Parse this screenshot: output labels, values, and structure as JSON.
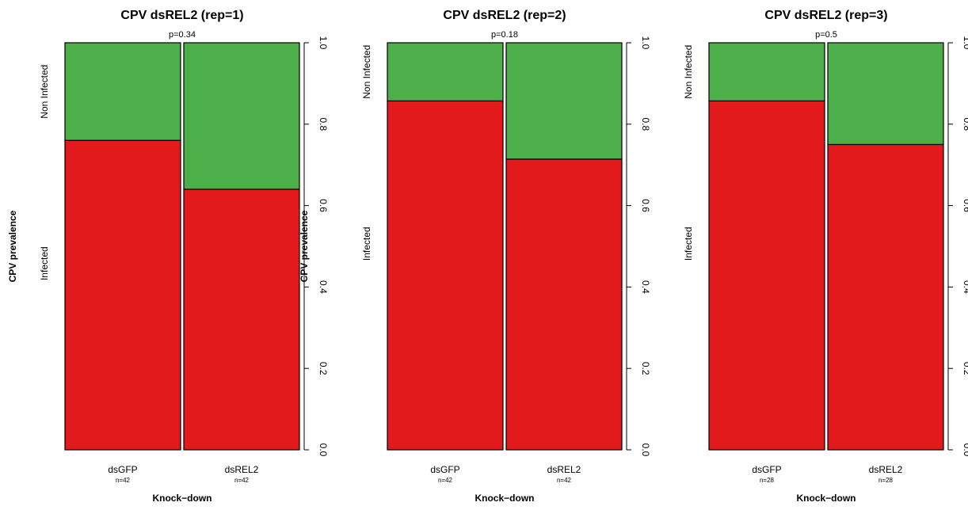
{
  "colors": {
    "infected": "#e31a1c",
    "non_infected": "#4daf4a",
    "outline": "#000000",
    "background": "#ffffff"
  },
  "chart_data": [
    {
      "type": "bar",
      "stacked": true,
      "title": "CPV dsREL2 (rep=1)",
      "p_value": "p=0.34",
      "xlabel": "Knock−down",
      "ylabel": "CPV prevalence",
      "ylim": [
        0,
        1
      ],
      "yticks": [
        "0.0",
        "0.2",
        "0.4",
        "0.6",
        "0.8",
        "1.0"
      ],
      "y_axis_side": "right",
      "categories": [
        "dsGFP",
        "dsREL2"
      ],
      "n_labels": [
        "n=42",
        "n=42"
      ],
      "series": [
        {
          "name": "Infected",
          "values": [
            0.76,
            0.64
          ]
        },
        {
          "name": "Non Infected",
          "values": [
            0.24,
            0.36
          ]
        }
      ]
    },
    {
      "type": "bar",
      "stacked": true,
      "title": "CPV dsREL2 (rep=2)",
      "p_value": "p=0.18",
      "xlabel": "Knock−down",
      "ylabel": "CPV prevalence",
      "ylim": [
        0,
        1
      ],
      "yticks": [
        "0.0",
        "0.2",
        "0.4",
        "0.6",
        "0.8",
        "1.0"
      ],
      "y_axis_side": "right",
      "categories": [
        "dsGFP",
        "dsREL2"
      ],
      "n_labels": [
        "n=42",
        "n=42"
      ],
      "series": [
        {
          "name": "Infected",
          "values": [
            0.857,
            0.714
          ]
        },
        {
          "name": "Non Infected",
          "values": [
            0.143,
            0.286
          ]
        }
      ]
    },
    {
      "type": "bar",
      "stacked": true,
      "title": "CPV dsREL2 (rep=3)",
      "p_value": "p=0.5",
      "xlabel": "Knock−down",
      "ylabel": "",
      "ylim": [
        0,
        1
      ],
      "yticks": [
        "0.0",
        "0.2",
        "0.4",
        "0.6",
        "0.8",
        "1.0"
      ],
      "y_axis_side": "right",
      "categories": [
        "dsGFP",
        "dsREL2"
      ],
      "n_labels": [
        "n=28",
        "n=28"
      ],
      "series": [
        {
          "name": "Infected",
          "values": [
            0.857,
            0.75
          ]
        },
        {
          "name": "Non Infected",
          "values": [
            0.143,
            0.25
          ]
        }
      ]
    }
  ]
}
